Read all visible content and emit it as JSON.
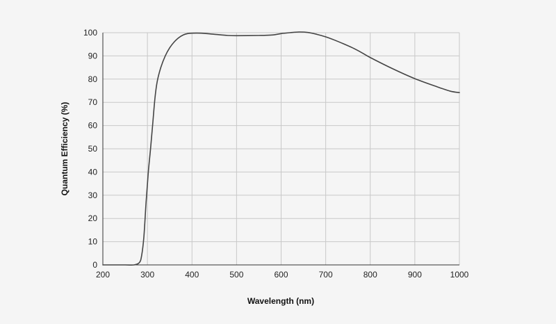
{
  "chart_data": {
    "type": "line",
    "title": "",
    "xlabel": "Wavelength (nm)",
    "ylabel": "Quantum Efficiency (%)",
    "xlim": [
      200,
      1000
    ],
    "ylim": [
      0,
      100
    ],
    "x_ticks": [
      "200",
      "300",
      "400",
      "500",
      "600",
      "700",
      "800",
      "900",
      "1000"
    ],
    "y_ticks": [
      "0",
      "10",
      "20",
      "30",
      "40",
      "50",
      "60",
      "70",
      "80",
      "90",
      "100"
    ],
    "grid": true,
    "legend": "none",
    "series": [
      {
        "color": "#444444",
        "x": [
          200,
          250,
          270,
          282,
          287,
          292,
          297,
          302,
          307,
          312,
          317,
          322,
          330,
          340,
          350,
          360,
          370,
          380,
          390,
          400,
          420,
          450,
          480,
          500,
          550,
          580,
          600,
          620,
          640,
          660,
          680,
          700,
          720,
          740,
          760,
          780,
          800,
          850,
          900,
          950,
          980,
          1000
        ],
        "y": [
          0,
          0,
          0,
          1,
          4,
          12,
          27,
          40,
          50,
          61,
          72,
          79,
          85,
          90,
          93.5,
          96,
          97.8,
          99,
          99.6,
          99.8,
          99.8,
          99.3,
          98.8,
          98.7,
          98.8,
          99,
          99.6,
          100,
          100.3,
          100.1,
          99.3,
          98.2,
          96.8,
          95.2,
          93.5,
          91.5,
          89.3,
          84.5,
          80.2,
          76.7,
          74.8,
          74.2
        ]
      }
    ]
  }
}
